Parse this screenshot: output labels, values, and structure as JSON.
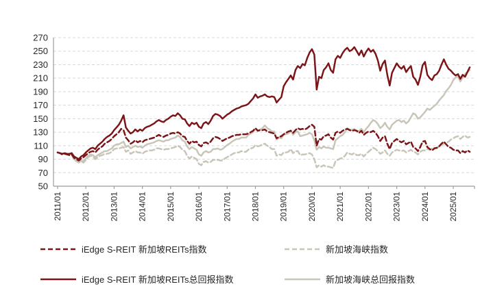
{
  "chart_data": {
    "type": "line",
    "title": "",
    "xlabel": "",
    "ylabel": "",
    "ylim": [
      50,
      270
    ],
    "y_ticks": [
      50,
      70,
      90,
      110,
      130,
      150,
      170,
      190,
      210,
      230,
      250,
      270
    ],
    "x_tick_labels": [
      "2011/01",
      "2012/01",
      "2013/01",
      "2014/01",
      "2015/01",
      "2016/01",
      "2017/01",
      "2018/01",
      "2019/01",
      "2020/01",
      "2021/01",
      "2022/01",
      "2023/01",
      "2024/01",
      "2025/01"
    ],
    "x_start": "2011/01",
    "x_end": "2025/08",
    "grid": "horizontal-dashed",
    "legend_position": "bottom",
    "series": [
      {
        "name": "iEdge S-REIT 新加坡REITs指数",
        "style": "dashed",
        "color": "#7b1518",
        "values": [
          100,
          99,
          97,
          98,
          97,
          96,
          97,
          92,
          90,
          88,
          91,
          93,
          96,
          99,
          101,
          102,
          100,
          104,
          107,
          109,
          113,
          115,
          117,
          120,
          124,
          127,
          130,
          135,
          133,
          122,
          118,
          113,
          115,
          118,
          115,
          117,
          115,
          118,
          119,
          120,
          121,
          122,
          124,
          126,
          124,
          123,
          125,
          126,
          128,
          129,
          128,
          130,
          128,
          124,
          123,
          117,
          113,
          117,
          115,
          116,
          111,
          109,
          114,
          115,
          113,
          116,
          121,
          123,
          122,
          120,
          117,
          119,
          121,
          122,
          124,
          125,
          126,
          126,
          127,
          127,
          127,
          128,
          130,
          132,
          136,
          132,
          133,
          133,
          134,
          131,
          130,
          129,
          128,
          121,
          123,
          124,
          127,
          129,
          131,
          132,
          129,
          133,
          136,
          134,
          135,
          134,
          136,
          139,
          141,
          138,
          110,
          120,
          119,
          124,
          125,
          127,
          122,
          119,
          129,
          131,
          129,
          132,
          134,
          135,
          133,
          132,
          133,
          132,
          129,
          132,
          126,
          129,
          131,
          130,
          132,
          129,
          124,
          117,
          122,
          124,
          113,
          105,
          114,
          117,
          120,
          117,
          115,
          117,
          112,
          114,
          116,
          108,
          106,
          102,
          108,
          116,
          117,
          108,
          105,
          103,
          106,
          107,
          109,
          113,
          116,
          112,
          108,
          107,
          104,
          103,
          103,
          99,
          102,
          100,
          103,
          101
        ]
      },
      {
        "name": "新加坡海峡指数",
        "style": "dashed",
        "color": "#c9c5b8",
        "values": [
          100,
          99,
          97,
          98,
          97,
          96,
          97,
          89,
          87,
          85,
          87,
          85,
          89,
          93,
          95,
          94,
          90,
          93,
          95,
          96,
          98,
          98,
          99,
          101,
          105,
          106,
          106,
          107,
          108,
          101,
          103,
          98,
          100,
          102,
          100,
          100,
          98,
          101,
          102,
          103,
          103,
          104,
          106,
          106,
          105,
          104,
          105,
          105,
          106,
          107,
          108,
          110,
          108,
          104,
          102,
          95,
          91,
          94,
          92,
          90,
          83,
          81,
          86,
          87,
          85,
          86,
          89,
          89,
          89,
          88,
          88,
          91,
          93,
          95,
          97,
          99,
          100,
          100,
          102,
          101,
          101,
          104,
          106,
          107,
          111,
          109,
          110,
          112,
          113,
          110,
          108,
          105,
          105,
          95,
          97,
          96,
          100,
          100,
          101,
          105,
          99,
          102,
          102,
          96,
          97,
          97,
          98,
          99,
          97,
          90,
          78,
          81,
          79,
          81,
          79,
          79,
          78,
          77,
          87,
          89,
          91,
          92,
          95,
          100,
          98,
          97,
          99,
          96,
          96,
          98,
          94,
          98,
          101,
          104,
          107,
          105,
          102,
          98,
          100,
          103,
          98,
          95,
          100,
          102,
          104,
          103,
          102,
          103,
          100,
          102,
          104,
          101,
          100,
          97,
          101,
          103,
          103,
          105,
          104,
          106,
          107,
          106,
          109,
          111,
          113,
          114,
          116,
          119,
          121,
          123,
          124,
          120,
          123,
          125,
          122,
          123
        ]
      },
      {
        "name": "iEdge S-REIT 新加坡REITs总回报指数",
        "style": "solid",
        "color": "#7b1518",
        "values": [
          100,
          99,
          98,
          99,
          98,
          98,
          99,
          94,
          92,
          90,
          94,
          96,
          100,
          103,
          106,
          107,
          105,
          110,
          113,
          116,
          120,
          123,
          125,
          128,
          133,
          137,
          141,
          147,
          155,
          137,
          132,
          128,
          130,
          134,
          131,
          134,
          132,
          136,
          138,
          139,
          141,
          143,
          146,
          148,
          146,
          145,
          148,
          150,
          153,
          155,
          154,
          158,
          155,
          150,
          149,
          143,
          139,
          144,
          142,
          144,
          138,
          136,
          143,
          145,
          142,
          147,
          154,
          157,
          156,
          154,
          150,
          153,
          156,
          158,
          161,
          163,
          165,
          166,
          168,
          169,
          170,
          172,
          176,
          180,
          186,
          181,
          183,
          184,
          186,
          183,
          182,
          183,
          182,
          174,
          178,
          182,
          198,
          204,
          209,
          214,
          208,
          222,
          228,
          225,
          231,
          229,
          240,
          248,
          253,
          245,
          193,
          212,
          210,
          222,
          226,
          232,
          222,
          218,
          238,
          243,
          240,
          247,
          252,
          255,
          250,
          252,
          256,
          250,
          244,
          251,
          242,
          249,
          254,
          249,
          252,
          246,
          236,
          221,
          231,
          236,
          215,
          199,
          218,
          225,
          232,
          227,
          224,
          228,
          219,
          224,
          228,
          212,
          208,
          200,
          212,
          229,
          234,
          215,
          210,
          207,
          214,
          216,
          221,
          230,
          238,
          230,
          224,
          221,
          217,
          214,
          216,
          209,
          215,
          212,
          219,
          226
        ]
      },
      {
        "name": "新加坡海峡总回报指数",
        "style": "solid",
        "color": "#c9c5b8",
        "values": [
          100,
          99,
          98,
          99,
          98,
          97,
          98,
          90,
          88,
          86,
          88,
          87,
          91,
          95,
          97,
          96,
          93,
          96,
          98,
          100,
          102,
          102,
          104,
          106,
          110,
          112,
          112,
          114,
          116,
          108,
          110,
          106,
          108,
          110,
          108,
          109,
          107,
          110,
          112,
          113,
          114,
          115,
          117,
          118,
          117,
          116,
          118,
          118,
          120,
          121,
          122,
          125,
          123,
          118,
          116,
          109,
          105,
          108,
          106,
          104,
          97,
          95,
          100,
          102,
          100,
          101,
          105,
          105,
          106,
          104,
          105,
          108,
          111,
          113,
          116,
          118,
          120,
          120,
          122,
          122,
          122,
          126,
          128,
          130,
          135,
          132,
          134,
          136,
          140,
          136,
          134,
          131,
          131,
          119,
          122,
          121,
          126,
          127,
          128,
          133,
          126,
          130,
          131,
          124,
          125,
          126,
          127,
          129,
          127,
          118,
          104,
          108,
          106,
          109,
          107,
          107,
          106,
          105,
          118,
          121,
          124,
          126,
          130,
          136,
          134,
          133,
          135,
          132,
          132,
          135,
          130,
          135,
          139,
          144,
          148,
          146,
          142,
          136,
          139,
          144,
          138,
          134,
          141,
          144,
          147,
          148,
          145,
          147,
          143,
          146,
          152,
          158,
          156,
          150,
          152,
          156,
          160,
          165,
          163,
          166,
          169,
          172,
          177,
          181,
          185,
          191,
          195,
          200,
          207,
          211,
          213,
          205,
          211,
          216,
          219,
          222
        ]
      }
    ]
  },
  "colors": {
    "maroon": "#7b1518",
    "beige_gray": "#c9c5b8",
    "gridline": "#d8d8d8",
    "axis": "#9b9b9b",
    "tick_text": "#262626"
  }
}
